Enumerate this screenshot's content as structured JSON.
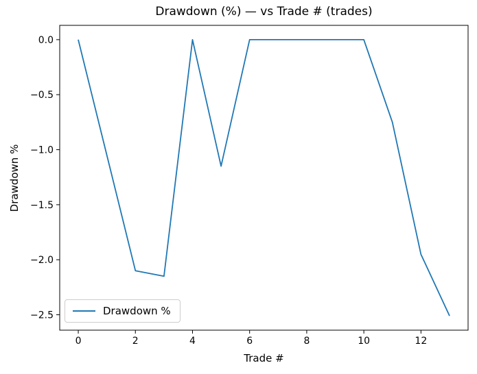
{
  "chart_data": {
    "type": "line",
    "title": "Drawdown (%) — vs Trade # (trades)",
    "xlabel": "Trade #",
    "ylabel": "Drawdown %",
    "x": [
      0,
      1,
      2,
      3,
      4,
      5,
      6,
      7,
      8,
      9,
      10,
      11,
      12,
      13
    ],
    "series": [
      {
        "name": "Drawdown %",
        "color": "#1f77b4",
        "values": [
          0.0,
          -1.05,
          -2.1,
          -2.15,
          0.0,
          -1.15,
          0.0,
          0.0,
          0.0,
          0.0,
          0.0,
          -0.75,
          -1.95,
          -2.51
        ]
      }
    ],
    "xlim": [
      -0.65,
      13.65
    ],
    "ylim": [
      -2.64,
      0.13
    ],
    "xticks": {
      "values": [
        0,
        2,
        4,
        6,
        8,
        10,
        12
      ],
      "labels": [
        "0",
        "2",
        "4",
        "6",
        "8",
        "10",
        "12"
      ]
    },
    "yticks": {
      "values": [
        0.0,
        -0.5,
        -1.0,
        -1.5,
        -2.0,
        -2.5
      ],
      "labels": [
        "0.0",
        "−0.5",
        "−1.0",
        "−1.5",
        "−2.0",
        "−2.5"
      ]
    },
    "grid": false,
    "legend": {
      "position": "lower left",
      "entries": [
        {
          "label": "Drawdown %",
          "color": "#1f77b4"
        }
      ]
    },
    "colors": {
      "spine": "#000000",
      "background": "#ffffff"
    }
  }
}
